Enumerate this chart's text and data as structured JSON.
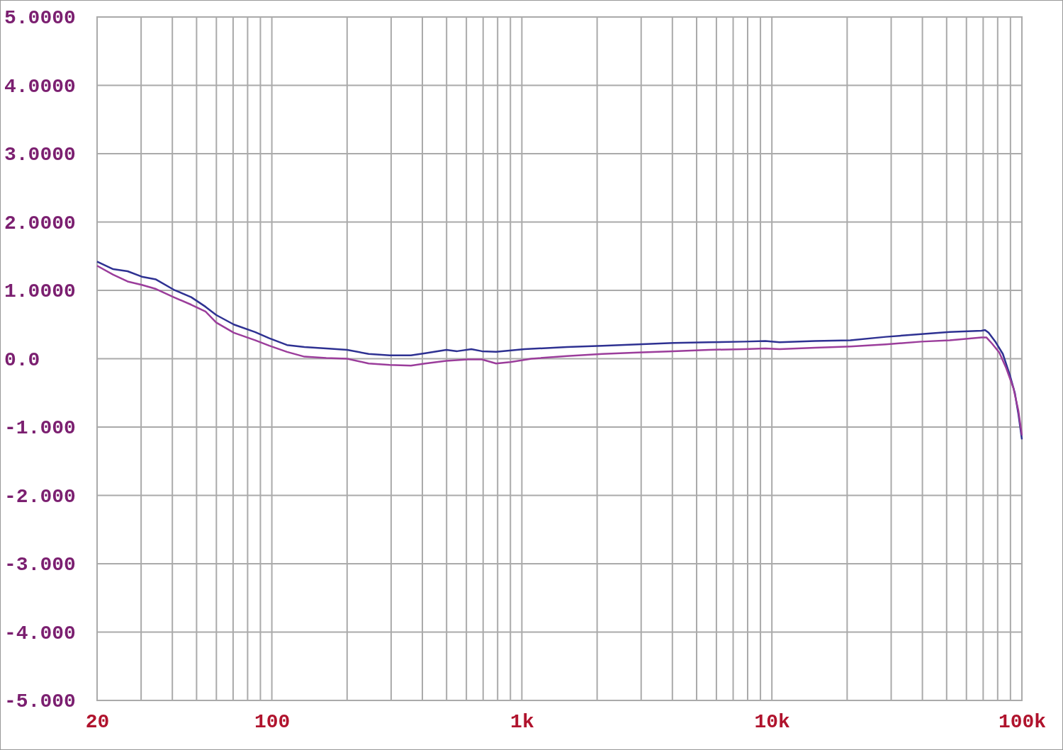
{
  "chart_data": {
    "type": "line",
    "log": "x",
    "grid": true,
    "xlim": [
      20,
      100000
    ],
    "ylim": [
      -5,
      5
    ],
    "xticks": [
      {
        "value": 20,
        "label": "20"
      },
      {
        "value": 30,
        "label": null
      },
      {
        "value": 40,
        "label": null
      },
      {
        "value": 50,
        "label": null
      },
      {
        "value": 60,
        "label": null
      },
      {
        "value": 70,
        "label": null
      },
      {
        "value": 80,
        "label": null
      },
      {
        "value": 90,
        "label": null
      },
      {
        "value": 100,
        "label": "100"
      },
      {
        "value": 200,
        "label": null
      },
      {
        "value": 300,
        "label": null
      },
      {
        "value": 400,
        "label": null
      },
      {
        "value": 500,
        "label": null
      },
      {
        "value": 600,
        "label": null
      },
      {
        "value": 700,
        "label": null
      },
      {
        "value": 800,
        "label": null
      },
      {
        "value": 900,
        "label": null
      },
      {
        "value": 1000,
        "label": "1k"
      },
      {
        "value": 2000,
        "label": null
      },
      {
        "value": 3000,
        "label": null
      },
      {
        "value": 4000,
        "label": null
      },
      {
        "value": 5000,
        "label": null
      },
      {
        "value": 6000,
        "label": null
      },
      {
        "value": 7000,
        "label": null
      },
      {
        "value": 8000,
        "label": null
      },
      {
        "value": 9000,
        "label": null
      },
      {
        "value": 10000,
        "label": "10k"
      },
      {
        "value": 20000,
        "label": null
      },
      {
        "value": 30000,
        "label": null
      },
      {
        "value": 40000,
        "label": null
      },
      {
        "value": 50000,
        "label": null
      },
      {
        "value": 60000,
        "label": null
      },
      {
        "value": 70000,
        "label": null
      },
      {
        "value": 80000,
        "label": null
      },
      {
        "value": 90000,
        "label": null
      },
      {
        "value": 100000,
        "label": "100k"
      }
    ],
    "yticks": [
      {
        "value": 5,
        "label": "5.0000"
      },
      {
        "value": 4,
        "label": "4.0000"
      },
      {
        "value": 3,
        "label": "3.0000"
      },
      {
        "value": 2,
        "label": "2.0000"
      },
      {
        "value": 1,
        "label": "1.0000"
      },
      {
        "value": 0,
        "label": "0.0"
      },
      {
        "value": -1,
        "label": "-1.000"
      },
      {
        "value": -2,
        "label": "-2.000"
      },
      {
        "value": -3,
        "label": "-3.000"
      },
      {
        "value": -4,
        "label": "-4.000"
      },
      {
        "value": -5,
        "label": "-5.000"
      }
    ],
    "series": [
      {
        "color": "#2e3192",
        "x": [
          20,
          23.2,
          26.5,
          30.2,
          34.4,
          40.5,
          47.6,
          54.3,
          59.9,
          70.5,
          85.7,
          97.7,
          115,
          135,
          165,
          200,
          244,
          296,
          360,
          411,
          499,
          551,
          628,
          692,
          789,
          1024,
          1514,
          2100,
          2910,
          4030,
          5590,
          7740,
          9420,
          10730,
          14870,
          20600,
          28550,
          39580,
          51400,
          68900,
          71200,
          73600,
          78600,
          83900,
          89500,
          93700,
          96800,
          100000
        ],
        "values": [
          1.42,
          1.31,
          1.28,
          1.2,
          1.16,
          1.01,
          0.9,
          0.76,
          0.64,
          0.5,
          0.39,
          0.3,
          0.2,
          0.17,
          0.15,
          0.13,
          0.07,
          0.05,
          0.05,
          0.08,
          0.13,
          0.11,
          0.14,
          0.11,
          0.1,
          0.14,
          0.17,
          0.19,
          0.21,
          0.23,
          0.24,
          0.25,
          0.26,
          0.24,
          0.26,
          0.27,
          0.32,
          0.36,
          0.39,
          0.41,
          0.42,
          0.38,
          0.24,
          0.07,
          -0.24,
          -0.5,
          -0.81,
          -1.18
        ]
      },
      {
        "color": "#9b3d9b",
        "x": [
          20,
          23.2,
          26.5,
          30.2,
          34.4,
          40.5,
          47.6,
          54.3,
          59.9,
          70.5,
          85.7,
          97.7,
          115,
          135,
          165,
          200,
          244,
          296,
          360,
          411,
          499,
          608,
          692,
          789,
          899,
          1093,
          1514,
          2100,
          2910,
          4030,
          5590,
          7740,
          9420,
          10730,
          14870,
          20600,
          28550,
          39580,
          51400,
          68900,
          72200,
          76000,
          81200,
          86600,
          92500,
          96800,
          100000
        ],
        "values": [
          1.36,
          1.23,
          1.13,
          1.08,
          1.02,
          0.9,
          0.79,
          0.69,
          0.53,
          0.38,
          0.27,
          0.19,
          0.1,
          0.03,
          0.01,
          0.0,
          -0.07,
          -0.09,
          -0.1,
          -0.07,
          -0.03,
          -0.01,
          -0.01,
          -0.07,
          -0.05,
          0.0,
          0.04,
          0.07,
          0.09,
          0.11,
          0.13,
          0.14,
          0.15,
          0.14,
          0.16,
          0.18,
          0.21,
          0.25,
          0.27,
          0.31,
          0.31,
          0.22,
          0.09,
          -0.14,
          -0.43,
          -0.76,
          -1.12
        ]
      }
    ]
  }
}
